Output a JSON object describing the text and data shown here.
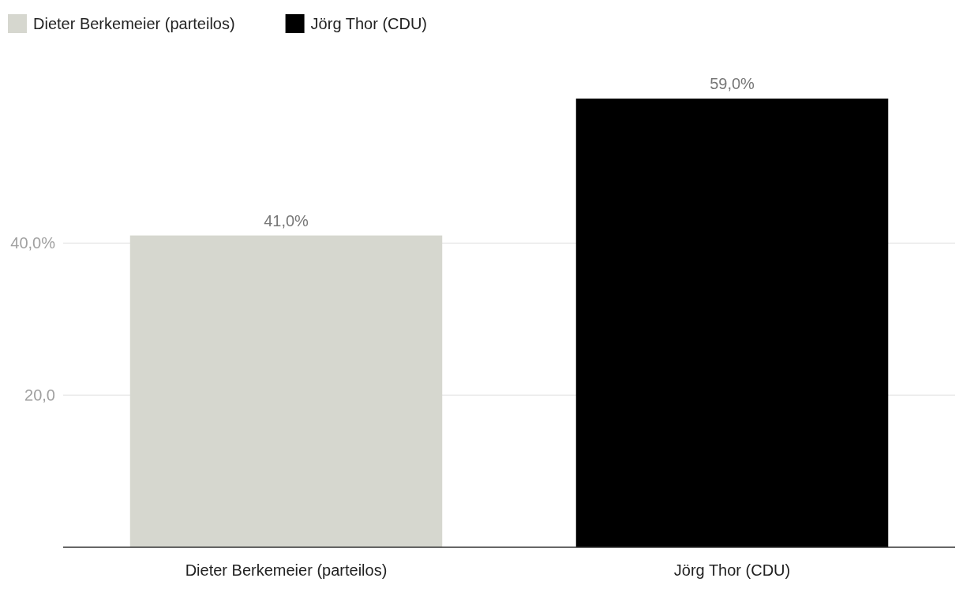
{
  "chart_data": {
    "type": "bar",
    "categories": [
      "Dieter Berkemeier (parteilos)",
      "Jörg Thor (CDU)"
    ],
    "series": [
      {
        "name": "Dieter Berkemeier (parteilos)",
        "color": "#d6d7cf",
        "values": [
          41.0,
          null
        ],
        "value_labels": [
          "41,0%",
          null
        ]
      },
      {
        "name": "Jörg Thor (CDU)",
        "color": "#000000",
        "values": [
          null,
          59.0
        ],
        "value_labels": [
          null,
          "59,0%"
        ]
      }
    ],
    "ylim": [
      0,
      59
    ],
    "yticks": [
      {
        "value": 20,
        "label": "20,0"
      },
      {
        "value": 40,
        "label": "40,0%"
      }
    ],
    "grid": "y",
    "legend": "top left"
  }
}
